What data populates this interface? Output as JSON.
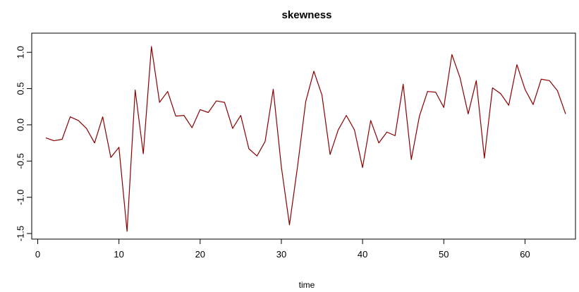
{
  "chart_data": {
    "type": "line",
    "title": "skewness",
    "xlabel": "time",
    "ylabel": "",
    "xlim": [
      1,
      65
    ],
    "ylim": [
      -1.47,
      1.08
    ],
    "x_ticks": [
      0,
      10,
      20,
      30,
      40,
      50,
      60
    ],
    "x_tick_labels": [
      "0",
      "10",
      "20",
      "30",
      "40",
      "50",
      "60"
    ],
    "y_ticks": [
      -1.5,
      -1.0,
      -0.5,
      0.0,
      0.5,
      1.0
    ],
    "y_tick_labels": [
      "-1.5",
      "-1.0",
      "-0.5",
      "0.0",
      "0.5",
      "1.0"
    ],
    "grid": false,
    "line_color": "#8B0000",
    "series": [
      {
        "x": [
          1,
          2,
          3,
          4,
          5,
          6,
          7,
          8,
          9,
          10,
          11,
          12,
          13,
          14,
          15,
          16,
          17,
          18,
          19,
          20,
          21,
          22,
          23,
          24,
          25,
          26,
          27,
          28,
          29,
          30,
          31,
          32,
          33,
          34,
          35,
          36,
          37,
          38,
          39,
          40,
          41,
          42,
          43,
          44,
          45,
          46,
          47,
          48,
          49,
          50,
          51,
          52,
          53,
          54,
          55,
          56,
          57,
          58,
          59,
          60,
          61,
          62,
          63,
          64,
          65
        ],
        "values": [
          -0.18,
          -0.22,
          -0.2,
          0.11,
          0.06,
          -0.05,
          -0.25,
          0.11,
          -0.45,
          -0.31,
          -1.47,
          0.48,
          -0.4,
          1.08,
          0.31,
          0.46,
          0.12,
          0.13,
          -0.04,
          0.21,
          0.17,
          0.33,
          0.31,
          -0.05,
          0.13,
          -0.33,
          -0.43,
          -0.23,
          0.49,
          -0.58,
          -1.38,
          -0.57,
          0.32,
          0.74,
          0.41,
          -0.41,
          -0.07,
          0.13,
          -0.07,
          -0.59,
          0.06,
          -0.25,
          -0.1,
          -0.15,
          0.56,
          -0.48,
          0.12,
          0.46,
          0.45,
          0.24,
          0.97,
          0.65,
          0.15,
          0.61,
          -0.46,
          0.51,
          0.43,
          0.27,
          0.83,
          0.49,
          0.28,
          0.63,
          0.61,
          0.47,
          0.15
        ]
      }
    ]
  }
}
